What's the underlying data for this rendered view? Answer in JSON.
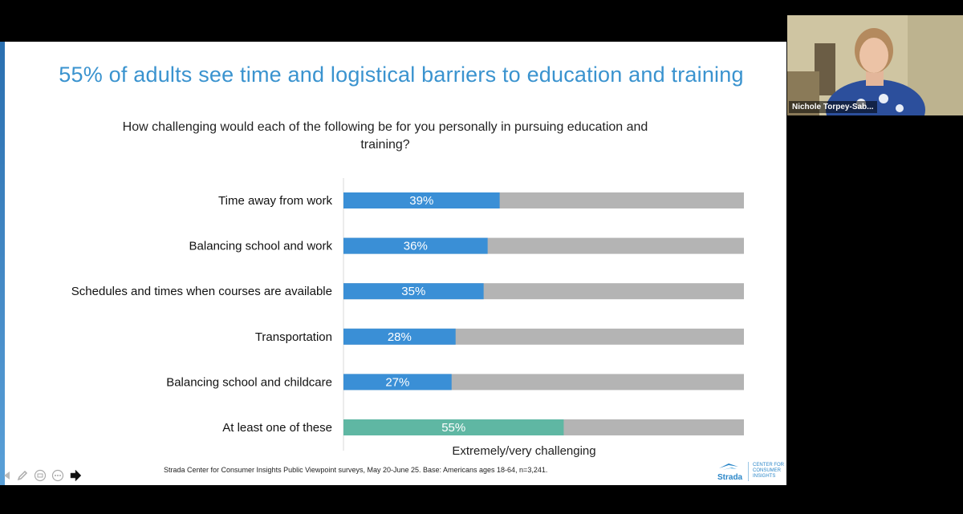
{
  "slide": {
    "title": "55% of adults see time and logistical barriers to education and training",
    "subtitle": "How challenging would each of the following be for you personally in pursuing education and training?",
    "footnote": "Strada Center for Consumer Insights Public Viewpoint surveys, May 20-June 25. Base: Americans ages 18-64, n=3,241."
  },
  "logo": {
    "brand": "Strada",
    "sub": "CENTER FOR CONSUMER INSIGHTS"
  },
  "video": {
    "participant_name": "Nichole Torpey-Sab..."
  },
  "toolbar": {
    "icons": [
      "back-arrow-icon",
      "pen-icon",
      "slides-icon",
      "more-icon",
      "forward-arrow-icon"
    ]
  },
  "colors": {
    "bar_blue": "#3a8fd6",
    "bar_teal": "#5fb7a3",
    "bar_gray": "#b4b4b4",
    "title_blue": "#3a93cf"
  },
  "chart_data": {
    "type": "bar",
    "orientation": "horizontal",
    "stacked": true,
    "xlabel": "Extremely/very challenging",
    "xlim": [
      0,
      100
    ],
    "categories": [
      "Time away from work",
      "Balancing school and work",
      "Schedules and times when courses are available",
      "Transportation",
      "Balancing school and childcare",
      "At least one of these"
    ],
    "values": [
      39,
      36,
      35,
      28,
      27,
      55
    ],
    "labels": [
      "39%",
      "36%",
      "35%",
      "28%",
      "27%",
      "55%"
    ],
    "highlight_last": true
  }
}
